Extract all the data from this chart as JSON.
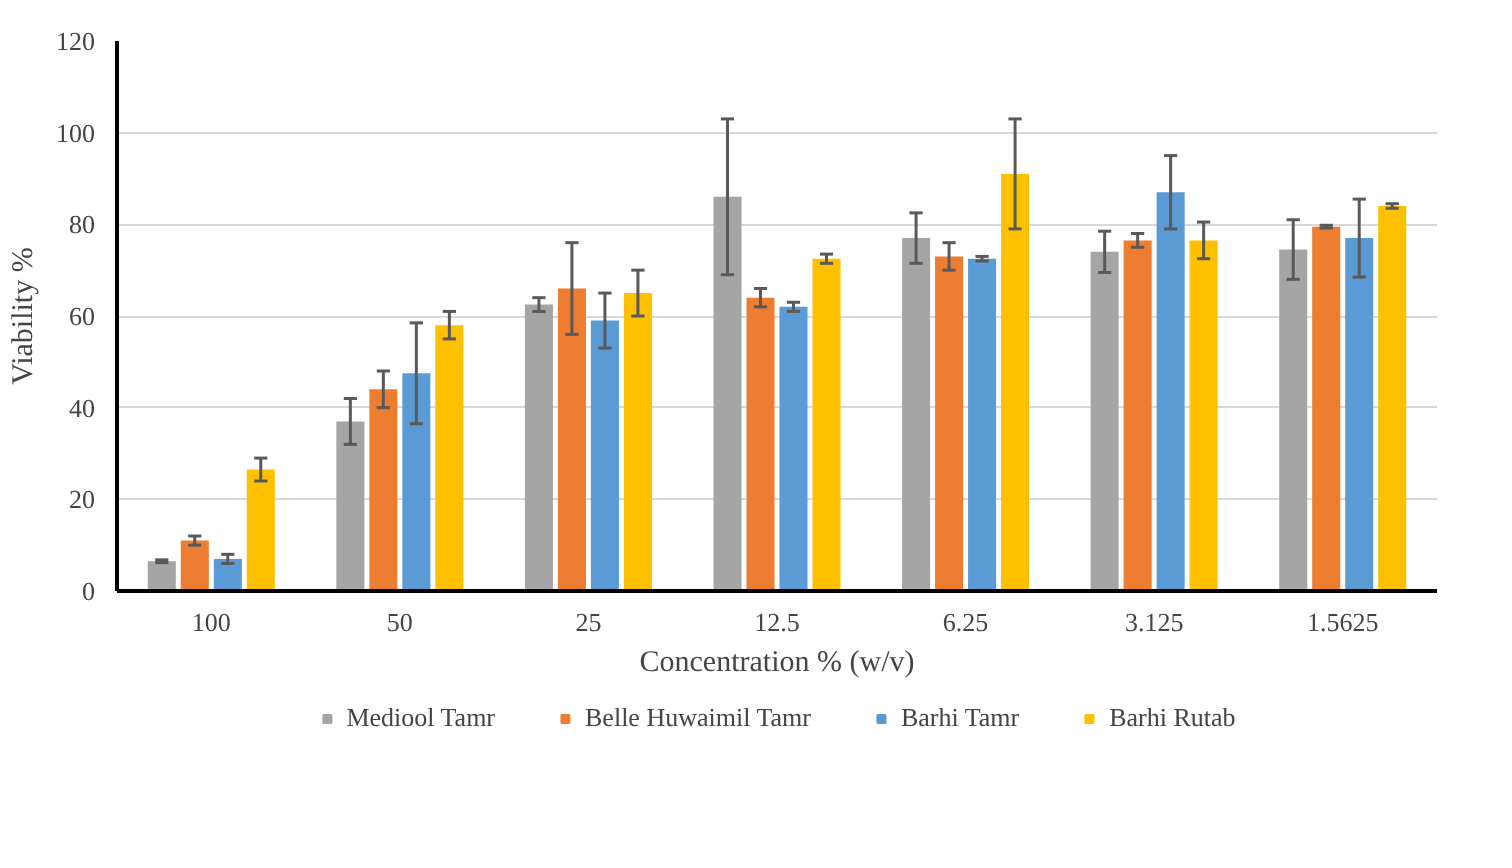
{
  "chart_data": {
    "type": "bar",
    "xlabel": "Concentration % (w/v)",
    "ylabel": "Viability %",
    "categories": [
      "100",
      "50",
      "25",
      "12.5",
      "6.25",
      "3.125",
      "1.5625"
    ],
    "ylim": [
      0,
      120
    ],
    "yticks": [
      0,
      20,
      40,
      60,
      80,
      100,
      120
    ],
    "grid": "y",
    "legend": "bottom",
    "series": [
      {
        "name": "Mediool Tamr",
        "color": "#a5a5a5",
        "values": [
          6.5,
          37,
          62.5,
          86,
          77,
          74,
          74.5
        ],
        "errors": [
          0.3,
          5,
          1.5,
          17,
          5.5,
          4.5,
          6.5
        ]
      },
      {
        "name": "Belle Huwaimil Tamr",
        "color": "#ed7d31",
        "values": [
          11,
          44,
          66,
          64,
          73,
          76.5,
          79.5
        ],
        "errors": [
          1,
          4,
          10,
          2,
          3,
          1.5,
          0.3
        ]
      },
      {
        "name": "Barhi Tamr",
        "color": "#5b9bd5",
        "values": [
          7,
          47.5,
          59,
          62,
          72.5,
          87,
          77
        ],
        "errors": [
          1,
          11,
          6,
          1,
          0.5,
          8,
          8.5
        ]
      },
      {
        "name": "Barhi Rutab",
        "color": "#ffc000",
        "values": [
          26.5,
          58,
          65,
          72.5,
          91,
          76.5,
          84
        ],
        "errors": [
          2.5,
          3,
          5,
          1,
          12,
          4,
          0.5
        ]
      }
    ]
  }
}
